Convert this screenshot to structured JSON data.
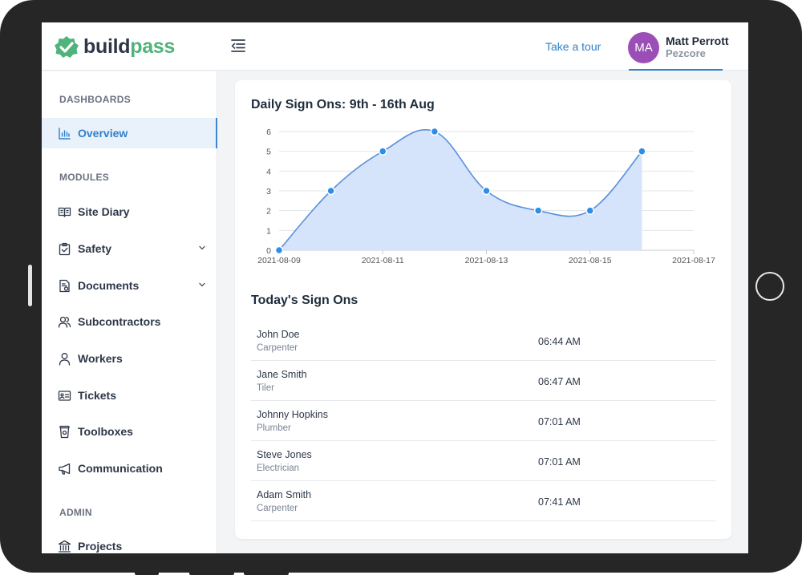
{
  "header": {
    "logo_build": "build",
    "logo_pass": "pass",
    "tour_label": "Take a tour",
    "user": {
      "initials": "MA",
      "name": "Matt Perrott",
      "org": "Pezcore"
    }
  },
  "sidebar": {
    "sections": {
      "dashboards": "DASHBOARDS",
      "modules": "MODULES",
      "admin": "ADMIN"
    },
    "items": {
      "overview": "Overview",
      "site_diary": "Site Diary",
      "safety": "Safety",
      "documents": "Documents",
      "subcontractors": "Subcontractors",
      "workers": "Workers",
      "tickets": "Tickets",
      "toolboxes": "Toolboxes",
      "communication": "Communication",
      "projects": "Projects"
    }
  },
  "chart_data": {
    "type": "area",
    "title": "Daily Sign Ons: 9th - 16th Aug",
    "x": [
      "2021-08-09",
      "2021-08-10",
      "2021-08-11",
      "2021-08-12",
      "2021-08-13",
      "2021-08-14",
      "2021-08-15",
      "2021-08-16"
    ],
    "values": [
      0,
      3,
      5,
      6,
      3,
      2,
      2,
      5
    ],
    "x_ticks": [
      "2021-08-09",
      "2021-08-11",
      "2021-08-13",
      "2021-08-15",
      "2021-08-17"
    ],
    "y_ticks": [
      0,
      1,
      2,
      3,
      4,
      5,
      6
    ],
    "ylim": [
      0,
      6
    ],
    "grid": true,
    "colors": {
      "line": "#5b8fd9",
      "fill": "#d6e4fb",
      "point": "#2d8ee6"
    }
  },
  "signons": {
    "title": "Today's Sign Ons",
    "rows": [
      {
        "name": "John Doe",
        "role": "Carpenter",
        "time": "06:44 AM"
      },
      {
        "name": "Jane Smith",
        "role": "Tiler",
        "time": "06:47 AM"
      },
      {
        "name": "Johnny Hopkins",
        "role": "Plumber",
        "time": "07:01 AM"
      },
      {
        "name": "Steve Jones",
        "role": "Electrician",
        "time": "07:01 AM"
      },
      {
        "name": "Adam Smith",
        "role": "Carpenter",
        "time": "07:41 AM"
      }
    ]
  },
  "colors": {
    "brand_green": "#4fb37a",
    "accent_blue": "#2f7fc9",
    "avatar_purple": "#9b4fb6"
  }
}
